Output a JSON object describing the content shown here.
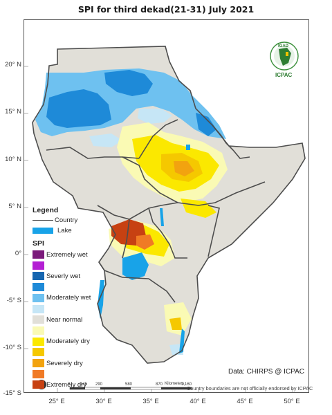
{
  "title": "SPI  for  third dekad(21-31)  July 2021",
  "axes": {
    "y_ticks": [
      "20° N",
      "15° N",
      "10° N",
      "5° N",
      "0°",
      "-5° S",
      "-10° S",
      "-15° S"
    ],
    "x_ticks": [
      "25° E",
      "30° E",
      "35° E",
      "40° E",
      "45° E",
      "50° E"
    ]
  },
  "legend": {
    "title": "Legend",
    "country_label": "Country",
    "lake_label": "Lake",
    "spi_title": "SPI",
    "classes": [
      {
        "label": "Extremely wet",
        "color": "#7b1a7b"
      },
      {
        "label": "",
        "color": "#b41fd4"
      },
      {
        "label": "Severly wet",
        "color": "#1565b0"
      },
      {
        "label": "",
        "color": "#1e8ad8"
      },
      {
        "label": "Moderately wet",
        "color": "#6ec1f0"
      },
      {
        "label": "",
        "color": "#c6e6f6"
      },
      {
        "label": "Near normal",
        "color": "#e1dfd8"
      },
      {
        "label": "",
        "color": "#fafab4"
      },
      {
        "label": "Moderately dry",
        "color": "#fbe800"
      },
      {
        "label": "",
        "color": "#f5c800"
      },
      {
        "label": "Severely dry",
        "color": "#f2a30f"
      },
      {
        "label": "",
        "color": "#f07a25"
      },
      {
        "label": "Extremely dry",
        "color": "#c74112"
      }
    ],
    "lake_color": "#18a3e8"
  },
  "credit": "Data: CHIRPS @ ICPAC",
  "disclaimer": "Country boundaries are not officially endorsed by ICPAC",
  "scale_bar": {
    "labels": [
      "0",
      "145",
      "290",
      "580",
      "870",
      "1,160"
    ],
    "unit": "Kilometers"
  },
  "logo": {
    "top_text": "IGAD",
    "bottom_text": "ICPAC"
  }
}
